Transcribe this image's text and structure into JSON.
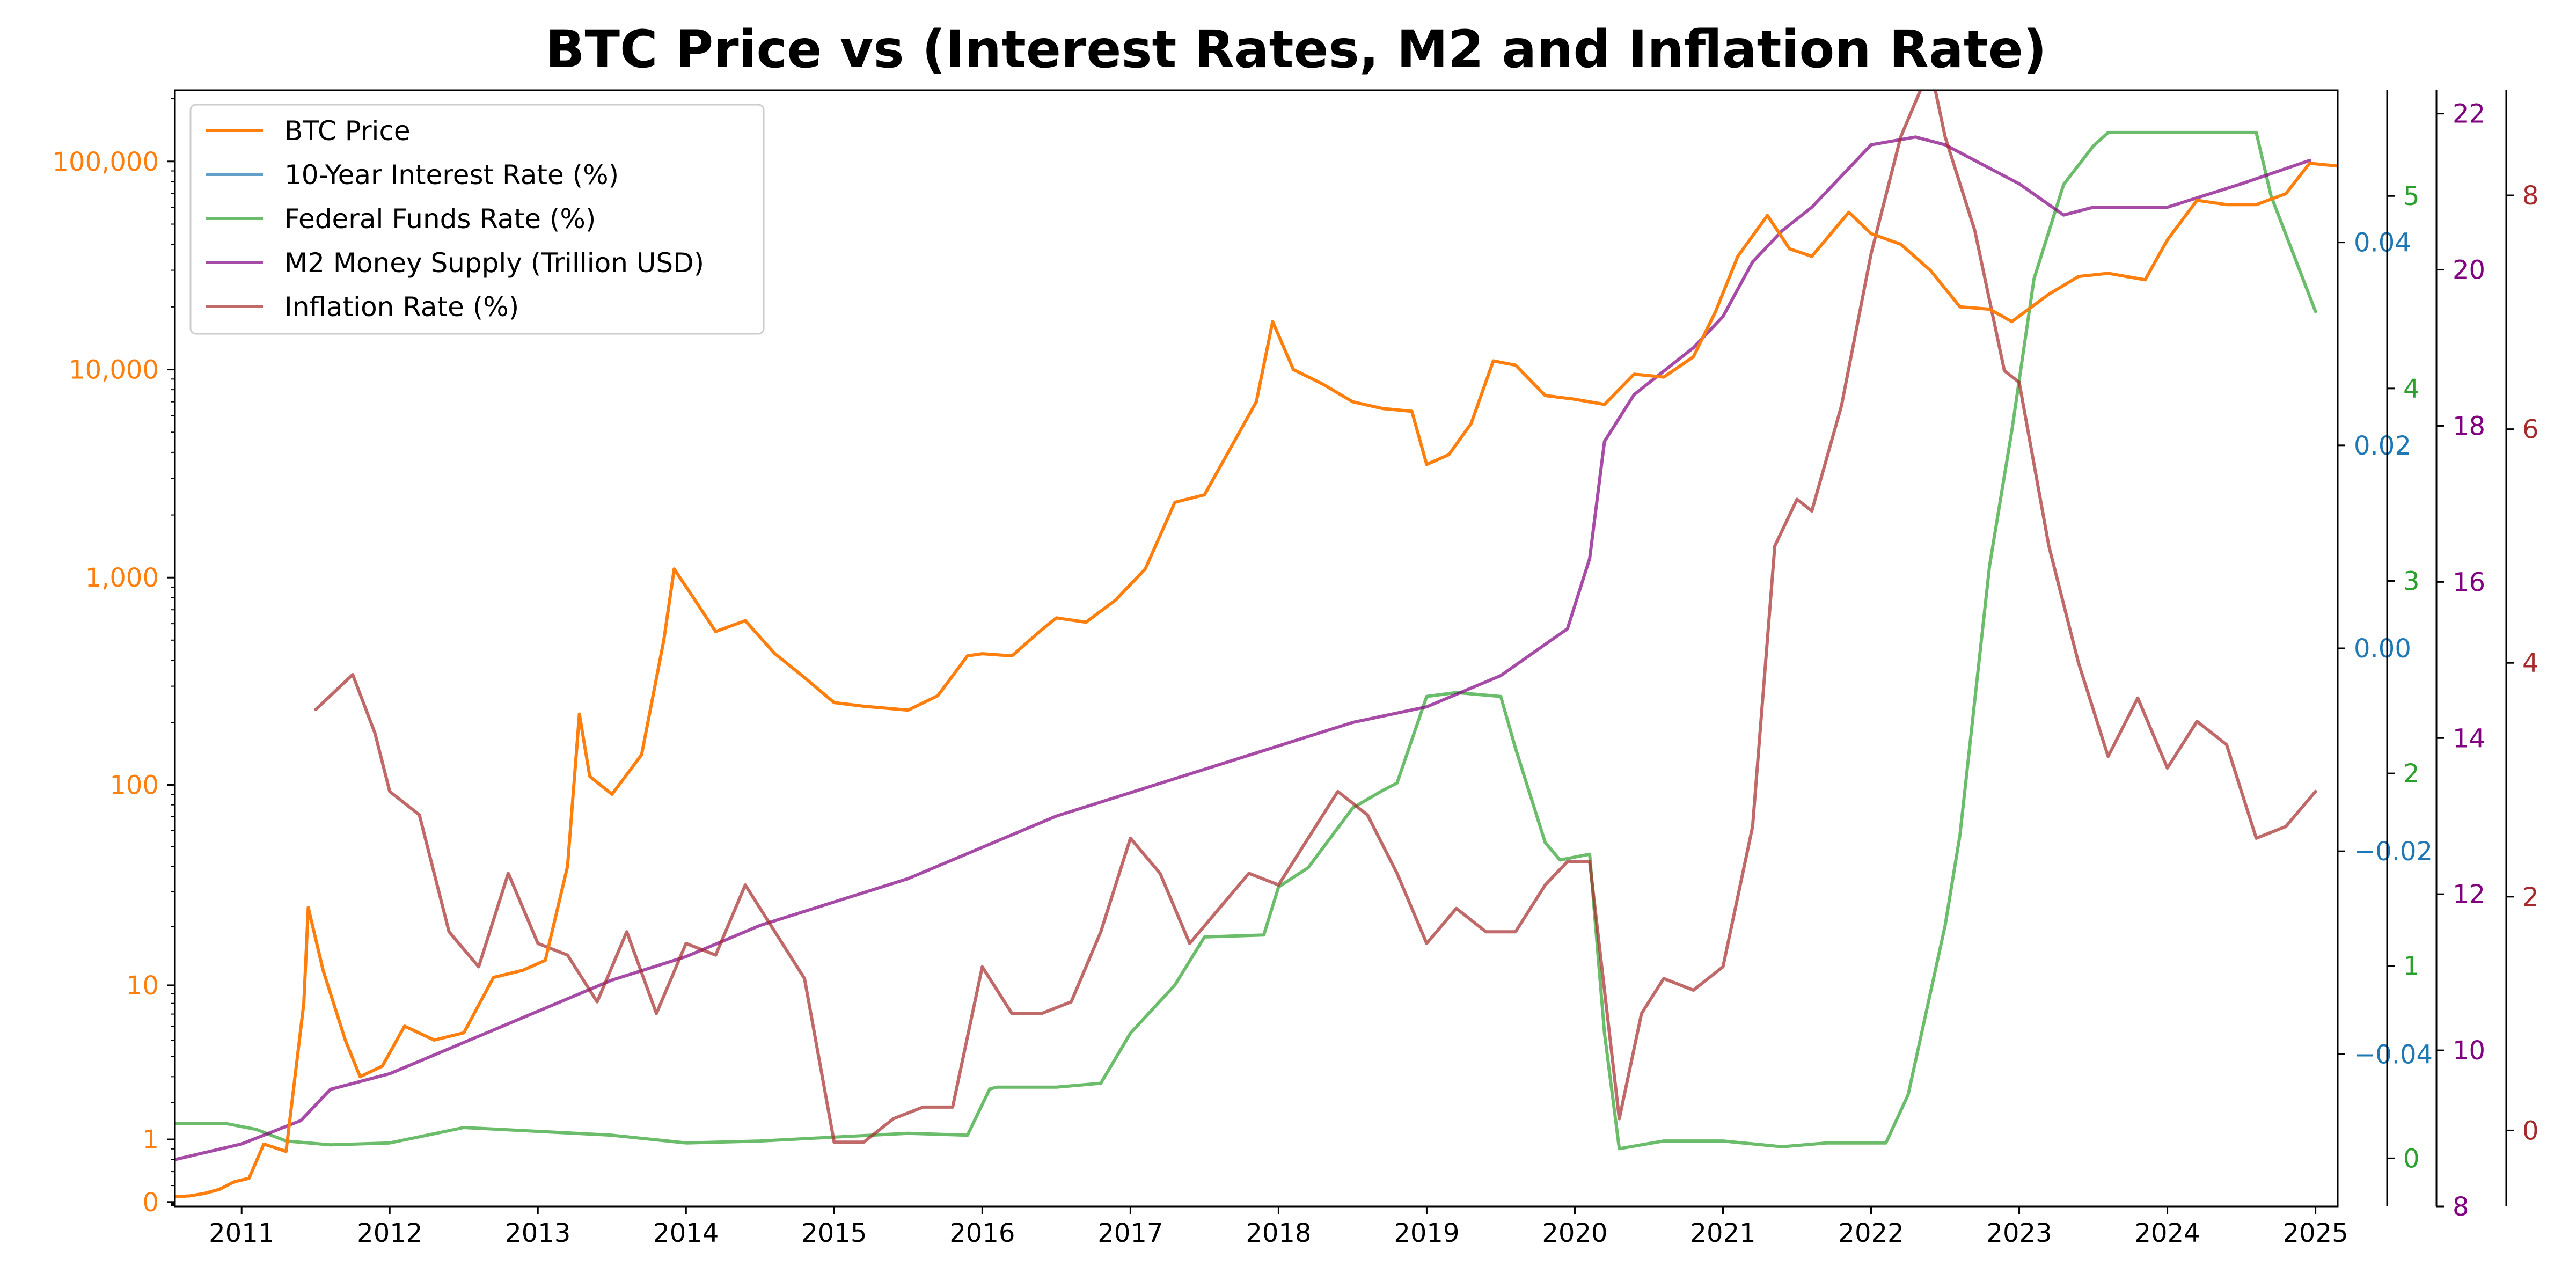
{
  "chart_data": {
    "type": "line",
    "title": "BTC Price vs (Interest Rates, M2 and Inflation Rate)",
    "xlabel": "",
    "ylabel": "",
    "legend_position": "top-left",
    "grid": false,
    "x_axis": {
      "range": [
        2010.55,
        2025.15
      ],
      "ticks": [
        2011,
        2012,
        2013,
        2014,
        2015,
        2016,
        2017,
        2018,
        2019,
        2020,
        2021,
        2022,
        2023,
        2024,
        2025
      ],
      "tick_labels": [
        "2011",
        "2012",
        "2013",
        "2014",
        "2015",
        "2016",
        "2017",
        "2018",
        "2019",
        "2020",
        "2021",
        "2022",
        "2023",
        "2024",
        "2025"
      ]
    },
    "axes": {
      "btc": {
        "side": "left",
        "scale": "symlog",
        "color": "#ff7f0e",
        "ticks": [
          0,
          1,
          10,
          100,
          1000,
          10000,
          100000
        ],
        "tick_labels": [
          "0",
          "1",
          "10",
          "100",
          "1,000",
          "10,000",
          "100,000"
        ]
      },
      "ten_year": {
        "side": "right",
        "color": "#1f77b4",
        "range": [
          -0.055,
          0.055
        ],
        "ticks": [
          -0.04,
          -0.02,
          0.0,
          0.02,
          0.04
        ],
        "tick_labels": [
          "−0.04",
          "−0.02",
          "0.00",
          "0.02",
          "0.04"
        ]
      },
      "fed_funds": {
        "side": "right",
        "color": "#2ca02c",
        "range": [
          -0.25,
          5.55
        ],
        "ticks": [
          0,
          1,
          2,
          3,
          4,
          5
        ],
        "tick_labels": [
          "0",
          "1",
          "2",
          "3",
          "4",
          "5"
        ]
      },
      "m2": {
        "side": "right",
        "color": "#800080",
        "range": [
          8.0,
          22.3
        ],
        "ticks": [
          8,
          10,
          12,
          14,
          16,
          18,
          20,
          22
        ],
        "tick_labels": [
          "8",
          "10",
          "12",
          "14",
          "16",
          "18",
          "20",
          "22"
        ]
      },
      "inflation": {
        "side": "right",
        "color": "#a52a2a",
        "range": [
          -0.65,
          8.9
        ],
        "ticks": [
          0,
          2,
          4,
          6,
          8
        ],
        "tick_labels": [
          "0",
          "2",
          "4",
          "6",
          "8"
        ]
      }
    },
    "series": [
      {
        "name": "BTC Price",
        "axis": "btc",
        "color": "#ff7f0e",
        "x": [
          2010.55,
          2010.65,
          2010.75,
          2010.85,
          2010.95,
          2011.05,
          2011.15,
          2011.3,
          2011.42,
          2011.45,
          2011.55,
          2011.7,
          2011.8,
          2011.95,
          2012.1,
          2012.3,
          2012.5,
          2012.7,
          2012.9,
          2013.05,
          2013.2,
          2013.28,
          2013.35,
          2013.5,
          2013.7,
          2013.85,
          2013.92,
          2014.05,
          2014.2,
          2014.4,
          2014.6,
          2014.8,
          2015.0,
          2015.2,
          2015.5,
          2015.7,
          2015.9,
          2016.0,
          2016.2,
          2016.4,
          2016.5,
          2016.7,
          2016.9,
          2017.1,
          2017.3,
          2017.5,
          2017.7,
          2017.85,
          2017.96,
          2018.1,
          2018.3,
          2018.5,
          2018.7,
          2018.9,
          2019.0,
          2019.15,
          2019.3,
          2019.45,
          2019.6,
          2019.8,
          2020.0,
          2020.2,
          2020.4,
          2020.6,
          2020.8,
          2020.95,
          2021.1,
          2021.3,
          2021.45,
          2021.6,
          2021.85,
          2022.0,
          2022.2,
          2022.4,
          2022.6,
          2022.8,
          2022.95,
          2023.2,
          2023.4,
          2023.6,
          2023.85,
          2024.0,
          2024.2,
          2024.4,
          2024.6,
          2024.8,
          2024.96,
          2025.15
        ],
        "y": [
          0.06,
          0.07,
          0.1,
          0.15,
          0.25,
          0.3,
          0.9,
          0.75,
          8,
          25,
          12,
          5,
          3,
          3.5,
          6,
          5,
          5.5,
          11,
          12,
          13.5,
          40,
          220,
          110,
          90,
          140,
          500,
          1100,
          800,
          550,
          620,
          430,
          330,
          250,
          240,
          230,
          270,
          420,
          430,
          420,
          560,
          640,
          610,
          780,
          1100,
          2300,
          2500,
          4500,
          7000,
          17000,
          10000,
          8500,
          7000,
          6500,
          6300,
          3500,
          3900,
          5500,
          11000,
          10500,
          7500,
          7200,
          6800,
          9500,
          9200,
          11500,
          19000,
          35000,
          55000,
          38000,
          35000,
          57000,
          45000,
          40000,
          30000,
          20000,
          19500,
          17000,
          23000,
          28000,
          29000,
          27000,
          42000,
          65000,
          62000,
          62000,
          70000,
          98000,
          95000
        ]
      },
      {
        "name": "10-Year Interest Rate (%)",
        "axis": "ten_year",
        "color": "#1f77b4",
        "x": [],
        "y": []
      },
      {
        "name": "Federal Funds Rate (%)",
        "axis": "fed_funds",
        "color": "#2ca02c",
        "x": [
          2010.55,
          2010.9,
          2011.1,
          2011.3,
          2011.6,
          2012.0,
          2012.5,
          2013.0,
          2013.5,
          2014.0,
          2014.5,
          2015.0,
          2015.5,
          2015.9,
          2016.05,
          2016.1,
          2016.5,
          2016.8,
          2017.0,
          2017.3,
          2017.5,
          2017.9,
          2018.0,
          2018.2,
          2018.5,
          2018.7,
          2018.8,
          2019.0,
          2019.2,
          2019.5,
          2019.6,
          2019.8,
          2019.9,
          2020.1,
          2020.2,
          2020.3,
          2020.6,
          2021.0,
          2021.4,
          2021.7,
          2022.1,
          2022.25,
          2022.5,
          2022.6,
          2022.8,
          2022.95,
          2023.1,
          2023.3,
          2023.5,
          2023.6,
          2024.0,
          2024.6,
          2024.7,
          2025.0
        ],
        "y": [
          0.18,
          0.18,
          0.15,
          0.09,
          0.07,
          0.08,
          0.16,
          0.14,
          0.12,
          0.08,
          0.09,
          0.11,
          0.13,
          0.12,
          0.36,
          0.37,
          0.37,
          0.39,
          0.65,
          0.9,
          1.15,
          1.16,
          1.41,
          1.51,
          1.82,
          1.91,
          1.95,
          2.4,
          2.42,
          2.4,
          2.13,
          1.64,
          1.55,
          1.58,
          0.65,
          0.05,
          0.09,
          0.09,
          0.06,
          0.08,
          0.08,
          0.33,
          1.21,
          1.68,
          3.08,
          3.78,
          4.57,
          5.06,
          5.26,
          5.33,
          5.33,
          5.33,
          5.0,
          4.4
        ]
      },
      {
        "name": "M2 Money Supply (Trillion USD)",
        "axis": "m2",
        "color": "#800080",
        "x": [
          2010.55,
          2011.0,
          2011.4,
          2011.6,
          2012.0,
          2012.5,
          2013.0,
          2013.5,
          2014.0,
          2014.5,
          2015.0,
          2015.5,
          2016.0,
          2016.5,
          2017.0,
          2017.5,
          2018.0,
          2018.5,
          2019.0,
          2019.5,
          2019.95,
          2020.1,
          2020.2,
          2020.4,
          2020.6,
          2020.8,
          2021.0,
          2021.2,
          2021.4,
          2021.6,
          2021.8,
          2022.0,
          2022.3,
          2022.5,
          2022.8,
          2023.0,
          2023.3,
          2023.5,
          2024.0,
          2024.5,
          2024.96
        ],
        "y": [
          8.6,
          8.8,
          9.1,
          9.5,
          9.7,
          10.1,
          10.5,
          10.9,
          11.2,
          11.6,
          11.9,
          12.2,
          12.6,
          13.0,
          13.3,
          13.6,
          13.9,
          14.2,
          14.4,
          14.8,
          15.4,
          16.3,
          17.8,
          18.4,
          18.7,
          19.0,
          19.4,
          20.1,
          20.5,
          20.8,
          21.2,
          21.6,
          21.7,
          21.6,
          21.3,
          21.1,
          20.7,
          20.8,
          20.8,
          21.1,
          21.4
        ]
      },
      {
        "name": "Inflation Rate (%)",
        "axis": "inflation",
        "color": "#a52a2a",
        "x": [
          2011.5,
          2011.75,
          2011.9,
          2012.0,
          2012.2,
          2012.4,
          2012.6,
          2012.8,
          2013.0,
          2013.2,
          2013.4,
          2013.6,
          2013.8,
          2014.0,
          2014.2,
          2014.4,
          2014.6,
          2014.8,
          2015.0,
          2015.2,
          2015.4,
          2015.6,
          2015.8,
          2016.0,
          2016.2,
          2016.4,
          2016.6,
          2016.8,
          2017.0,
          2017.2,
          2017.4,
          2017.6,
          2017.8,
          2018.0,
          2018.2,
          2018.4,
          2018.6,
          2018.8,
          2019.0,
          2019.2,
          2019.4,
          2019.6,
          2019.8,
          2019.95,
          2020.1,
          2020.3,
          2020.45,
          2020.6,
          2020.8,
          2021.0,
          2021.2,
          2021.35,
          2021.5,
          2021.6,
          2021.8,
          2022.0,
          2022.2,
          2022.4,
          2022.5,
          2022.7,
          2022.9,
          2023.0,
          2023.2,
          2023.4,
          2023.6,
          2023.8,
          2024.0,
          2024.2,
          2024.4,
          2024.6,
          2024.8,
          2025.0
        ],
        "y": [
          3.6,
          3.9,
          3.4,
          2.9,
          2.7,
          1.7,
          1.4,
          2.2,
          1.6,
          1.5,
          1.1,
          1.7,
          1.0,
          1.6,
          1.5,
          2.1,
          1.7,
          1.3,
          -0.1,
          -0.1,
          0.1,
          0.2,
          0.2,
          1.4,
          1.0,
          1.0,
          1.1,
          1.7,
          2.5,
          2.2,
          1.6,
          1.9,
          2.2,
          2.1,
          2.5,
          2.9,
          2.7,
          2.2,
          1.6,
          1.9,
          1.7,
          1.7,
          2.1,
          2.3,
          2.3,
          0.1,
          1.0,
          1.3,
          1.2,
          1.4,
          2.6,
          5.0,
          5.4,
          5.3,
          6.2,
          7.5,
          8.5,
          9.1,
          8.5,
          7.7,
          6.5,
          6.4,
          5.0,
          4.0,
          3.2,
          3.7,
          3.1,
          3.5,
          3.3,
          2.5,
          2.6,
          2.9
        ]
      }
    ]
  }
}
